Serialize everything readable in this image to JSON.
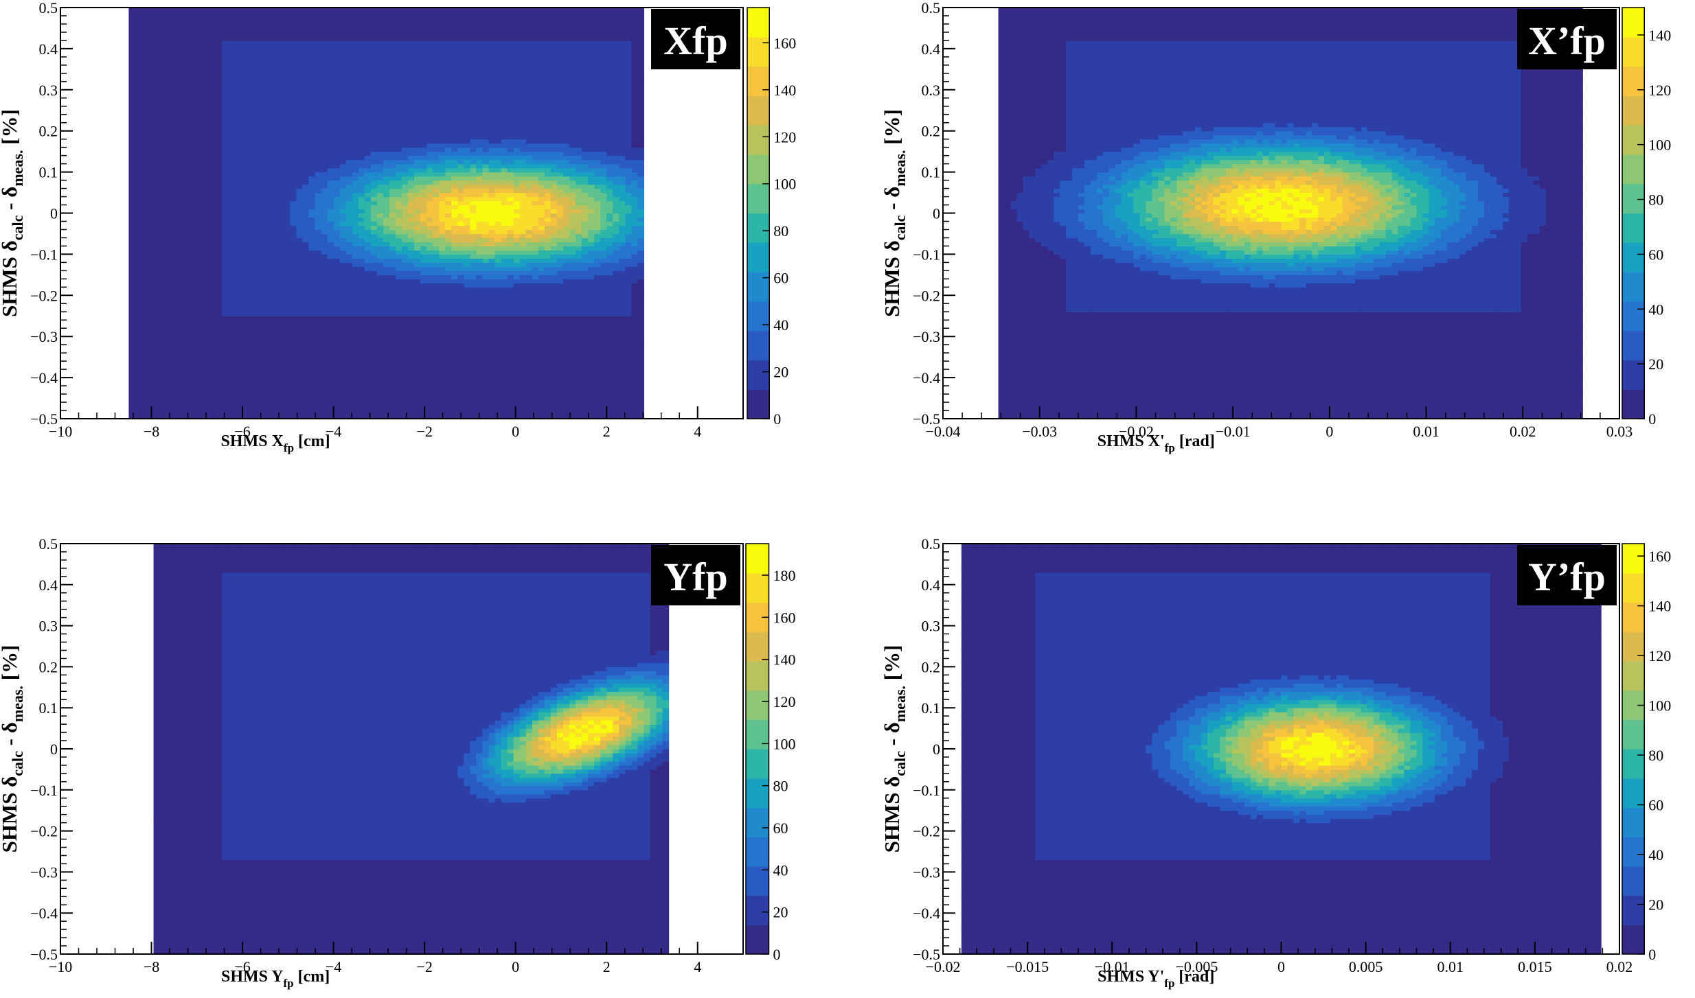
{
  "chart_data": [
    {
      "type": "heatmap",
      "label": "Xfp",
      "xlabel": "SHMS X",
      "xlabel_sub": "fp",
      "xlabel_unit": "[cm]",
      "ylabel": {
        "prefix": "SHMS  δ",
        "sub1": "calc",
        "mid": " - δ",
        "sub2": "meas.",
        "unit": " [%]"
      },
      "xlim": [
        -10,
        5
      ],
      "ylim": [
        -0.5,
        0.5
      ],
      "xticks": [
        -10,
        -8,
        -6,
        -4,
        -2,
        0,
        2,
        4
      ],
      "xtick_labels": [
        "−10",
        "−8",
        "−6",
        "−4",
        "−2",
        "0",
        "2",
        "4"
      ],
      "yticks": [
        -0.5,
        -0.4,
        -0.3,
        -0.2,
        -0.1,
        0,
        0.1,
        0.2,
        0.3,
        0.4,
        0.5
      ],
      "ytick_labels": [
        "−0.5",
        "−0.4",
        "−0.3",
        "−0.2",
        "−0.1",
        "0",
        "0.1",
        "0.2",
        "0.3",
        "0.4",
        "0.5"
      ],
      "zlim": [
        0,
        175
      ],
      "zticks": [
        0,
        20,
        40,
        60,
        80,
        100,
        120,
        140,
        160
      ],
      "ztick_labels": [
        "0",
        "20",
        "40",
        "60",
        "80",
        "100",
        "120",
        "140",
        "160"
      ],
      "distribution": {
        "x_range": [
          -8.5,
          2.8
        ],
        "peak": [
          -0.5,
          0.0
        ],
        "peak_width": [
          2.3,
          0.09
        ],
        "core_x_range": [
          -6.5,
          2.5
        ],
        "core_y_range": [
          -0.25,
          0.42
        ],
        "tilt": 0
      }
    },
    {
      "type": "heatmap",
      "label": "X’fp",
      "xlabel": "SHMS X'",
      "xlabel_sub": "fp",
      "xlabel_unit": "[rad]",
      "ylabel": {
        "prefix": "SHMS  δ",
        "sub1": "calc",
        "mid": " - δ",
        "sub2": "meas.",
        "unit": " [%]"
      },
      "xlim": [
        -0.04,
        0.03
      ],
      "ylim": [
        -0.5,
        0.5
      ],
      "xticks": [
        -0.04,
        -0.03,
        -0.02,
        -0.01,
        0,
        0.01,
        0.02,
        0.03
      ],
      "xtick_labels": [
        "−0.04",
        "−0.03",
        "−0.02",
        "−0.01",
        "0",
        "0.01",
        "0.02",
        "0.03"
      ],
      "yticks": [
        -0.5,
        -0.4,
        -0.3,
        -0.2,
        -0.1,
        0,
        0.1,
        0.2,
        0.3,
        0.4,
        0.5
      ],
      "ytick_labels": [
        "−0.5",
        "−0.4",
        "−0.3",
        "−0.2",
        "−0.1",
        "0",
        "0.1",
        "0.2",
        "0.3",
        "0.4",
        "0.5"
      ],
      "zlim": [
        0,
        150
      ],
      "zticks": [
        0,
        20,
        40,
        60,
        80,
        100,
        120,
        140
      ],
      "ztick_labels": [
        "0",
        "20",
        "40",
        "60",
        "80",
        "100",
        "120",
        "140"
      ],
      "distribution": {
        "x_range": [
          -0.034,
          0.026
        ],
        "peak": [
          -0.005,
          0.02
        ],
        "peak_width": [
          0.012,
          0.1
        ],
        "core_x_range": [
          -0.027,
          0.02
        ],
        "core_y_range": [
          -0.24,
          0.42
        ],
        "tilt": 0
      }
    },
    {
      "type": "heatmap",
      "label": "Yfp",
      "xlabel": "SHMS Y",
      "xlabel_sub": "fp",
      "xlabel_unit": "[cm]",
      "ylabel": {
        "prefix": "SHMS  δ",
        "sub1": "calc",
        "mid": " - δ",
        "sub2": "meas.",
        "unit": " [%]"
      },
      "xlim": [
        -10,
        5
      ],
      "ylim": [
        -0.5,
        0.5
      ],
      "xticks": [
        -10,
        -8,
        -6,
        -4,
        -2,
        0,
        2,
        4
      ],
      "xtick_labels": [
        "−10",
        "−8",
        "−6",
        "−4",
        "−2",
        "0",
        "2",
        "4"
      ],
      "yticks": [
        -0.5,
        -0.4,
        -0.3,
        -0.2,
        -0.1,
        0,
        0.1,
        0.2,
        0.3,
        0.4,
        0.5
      ],
      "ytick_labels": [
        "−0.5",
        "−0.4",
        "−0.3",
        "−0.2",
        "−0.1",
        "0",
        "0.1",
        "0.2",
        "0.3",
        "0.4",
        "0.5"
      ],
      "zlim": [
        0,
        195
      ],
      "zticks": [
        0,
        20,
        40,
        60,
        80,
        100,
        120,
        140,
        160,
        180
      ],
      "ztick_labels": [
        "0",
        "20",
        "40",
        "60",
        "80",
        "100",
        "120",
        "140",
        "160",
        "180"
      ],
      "distribution": {
        "x_range": [
          -8.0,
          3.3
        ],
        "peak": [
          1.5,
          0.04
        ],
        "peak_width": [
          1.4,
          0.07
        ],
        "core_x_range": [
          -6.5,
          3.0
        ],
        "core_y_range": [
          -0.27,
          0.43
        ],
        "tilt": 0.035
      }
    },
    {
      "type": "heatmap",
      "label": "Y’fp",
      "xlabel": "SHMS Y'",
      "xlabel_sub": "fp",
      "xlabel_unit": "[rad]",
      "ylabel": {
        "prefix": "SHMS  δ",
        "sub1": "calc",
        "mid": " - δ",
        "sub2": "meas.",
        "unit": " [%]"
      },
      "xlim": [
        -0.02,
        0.02
      ],
      "ylim": [
        -0.5,
        0.5
      ],
      "xticks": [
        -0.02,
        -0.015,
        -0.01,
        -0.005,
        0,
        0.005,
        0.01,
        0.015,
        0.02
      ],
      "xtick_labels": [
        "−0.02",
        "−0.015",
        "−0.01",
        "−0.005",
        "0",
        "0.005",
        "0.01",
        "0.015",
        "0.02"
      ],
      "yticks": [
        -0.5,
        -0.4,
        -0.3,
        -0.2,
        -0.1,
        0,
        0.1,
        0.2,
        0.3,
        0.4,
        0.5
      ],
      "ytick_labels": [
        "−0.5",
        "−0.4",
        "−0.3",
        "−0.2",
        "−0.1",
        "0",
        "0.1",
        "0.2",
        "0.3",
        "0.4",
        "0.5"
      ],
      "zlim": [
        0,
        165
      ],
      "zticks": [
        0,
        20,
        40,
        60,
        80,
        100,
        120,
        140,
        160
      ],
      "ztick_labels": [
        "0",
        "20",
        "40",
        "60",
        "80",
        "100",
        "120",
        "140",
        "160"
      ],
      "distribution": {
        "x_range": [
          -0.019,
          0.019
        ],
        "peak": [
          0.002,
          0.0
        ],
        "peak_width": [
          0.005,
          0.09
        ],
        "core_x_range": [
          -0.0145,
          0.0125
        ],
        "core_y_range": [
          -0.27,
          0.43
        ],
        "tilt": 0
      }
    }
  ],
  "palette": [
    "#352a87",
    "#2d3fa6",
    "#2a5ac4",
    "#2774cf",
    "#1f8bcd",
    "#18a1c0",
    "#2db5a7",
    "#5ec28e",
    "#8dc773",
    "#b7c35d",
    "#dbba4e",
    "#f5c33d",
    "#f8dd2a",
    "#f9fb0e"
  ]
}
